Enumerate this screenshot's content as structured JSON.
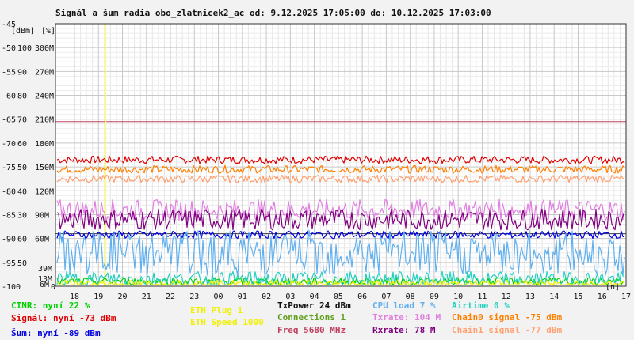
{
  "chart_data": {
    "type": "line",
    "title": "Signál a šum radia obo_zlatnicek2_ac od: 9.12.2025 17:05:00 do: 10.12.2025 17:03:00",
    "y_unit_left": "[dBm]",
    "y_unit_right": "[%]",
    "x_unit": "[h]",
    "y_ticks_dbm": [
      "-45",
      "-50",
      "-55",
      "-60",
      "-65",
      "-70",
      "-75",
      "-80",
      "-85",
      "-90",
      "-95",
      "-100"
    ],
    "y_ticks_pct": [
      "",
      "100",
      "90",
      "80",
      "70",
      "60",
      "50",
      "40",
      "30",
      "60",
      "50",
      ""
    ],
    "y_ticks_rate": [
      "",
      "300M",
      "270M",
      "240M",
      "210M",
      "180M",
      "150M",
      "120M",
      "90M",
      "60M",
      "",
      ""
    ],
    "y_extra_ticks": [
      {
        "label": "39M",
        "color": "#e060e0"
      },
      {
        "label": "13M",
        "color": "#e060e0"
      },
      {
        "label": "6M",
        "color": "#8000a0"
      },
      {
        "label": "0",
        "color": "#111111"
      }
    ],
    "x_ticks": [
      "18",
      "19",
      "20",
      "21",
      "22",
      "23",
      "00",
      "01",
      "02",
      "03",
      "04",
      "05",
      "06",
      "07",
      "08",
      "09",
      "10",
      "11",
      "12",
      "13",
      "14",
      "15",
      "16",
      "17"
    ],
    "ylim": [
      -100,
      -45
    ],
    "grid": true,
    "series": [
      {
        "name": "Signál",
        "color": "#e00000",
        "level": -73.5
      },
      {
        "name": "Chain0 signal",
        "color": "#ff8000",
        "level": -75.5
      },
      {
        "name": "Chain1 signal",
        "color": "#ffa070",
        "level": -77.5
      },
      {
        "name": "Txrate",
        "color": "#e080e0",
        "level": -84
      },
      {
        "name": "Rxrate",
        "color": "#800080",
        "level": -86
      },
      {
        "name": "Šum",
        "color": "#0000e0",
        "level": -89.2
      },
      {
        "name": "CPU load",
        "color": "#60b0f0",
        "level": -95
      },
      {
        "name": "CINR",
        "color": "#00d000",
        "level": -99
      },
      {
        "name": "Airtime",
        "color": "#20d0c0",
        "level": -98.5
      },
      {
        "name": "ETH Plug",
        "color": "#f0f000",
        "level": -99.5
      }
    ],
    "reference_lines": [
      {
        "color": "#c04060",
        "value": -65.5
      },
      {
        "color": "#404040",
        "value": -89
      }
    ],
    "marker_x": "19.3",
    "marker_color": "#ffff60"
  },
  "legend": {
    "cinr": "CINR: nyní 22 %",
    "signal": "Signál: nyní -73 dBm",
    "sum": "Šum: nyní -89 dBm",
    "eth_plug": "ETH Plug 1",
    "eth_speed": "ETH Speed 1000",
    "txpower": "TxPower 24 dBm",
    "connections": "Connections 1",
    "freq": "Freq 5680 MHz",
    "cpu": "CPU load 7 %",
    "txrate": "Txrate: 104 M",
    "rxrate": "Rxrate: 78 M",
    "airtime": "Airtime 0 %",
    "chain0": "Chain0 signal -75 dBm",
    "chain1": "Chain1 signal -77 dBm"
  },
  "colors": {
    "cinr": "#00d000",
    "signal": "#e00000",
    "sum": "#0000e0",
    "eth_plug": "#f0f000",
    "eth_speed": "#f0f000",
    "txpower": "#111111",
    "connections": "#60a020",
    "freq": "#c04060",
    "cpu": "#60b0f0",
    "txrate": "#e080e0",
    "rxrate": "#800080",
    "airtime": "#20d0c0",
    "chain0": "#ff8000",
    "chain1": "#ffa070"
  }
}
